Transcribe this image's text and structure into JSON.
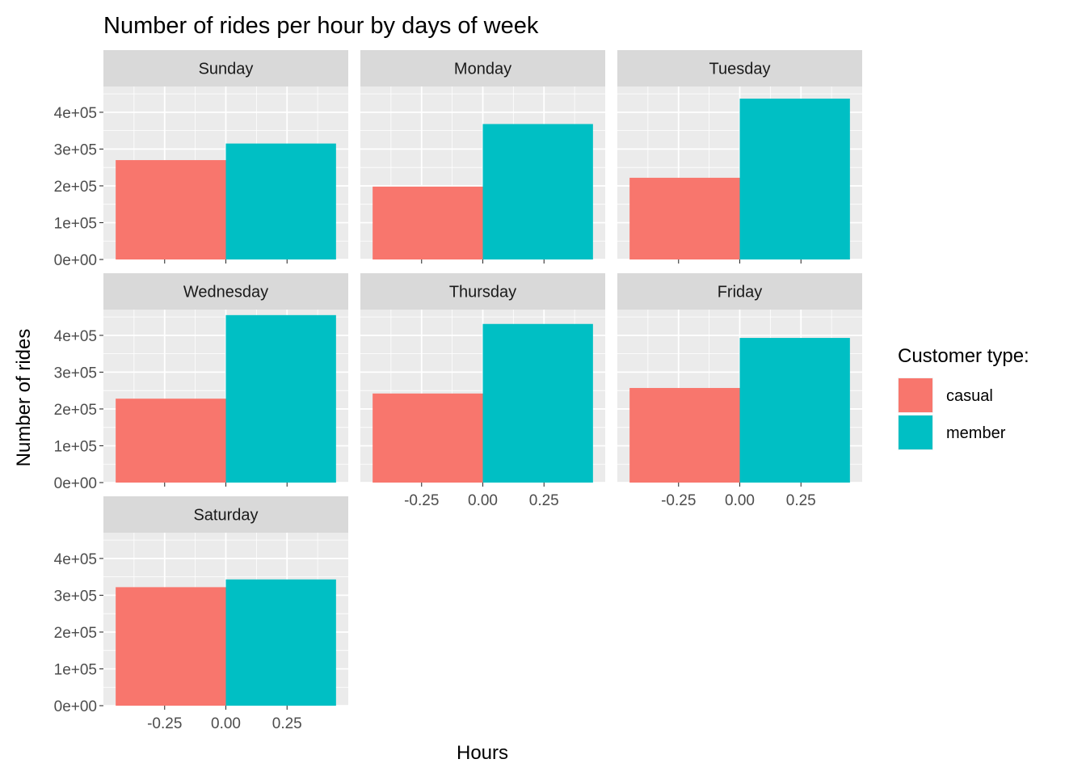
{
  "chart_data": {
    "type": "bar",
    "title": "Number of rides per hour by days of week",
    "xlabel": "Hours",
    "ylabel": "Number of rides",
    "facet_order": [
      "Sunday",
      "Monday",
      "Tuesday",
      "Wednesday",
      "Thursday",
      "Friday",
      "Saturday"
    ],
    "xlim": [
      -0.5,
      0.5
    ],
    "ylim": [
      0,
      470000
    ],
    "x_ticks": [
      -0.25,
      0.0,
      0.25
    ],
    "x_tick_labels": [
      "-0.25",
      "0.00",
      "0.25"
    ],
    "y_ticks": [
      0,
      100000,
      200000,
      300000,
      400000
    ],
    "y_tick_labels": [
      "0e+00",
      "1e+05",
      "2e+05",
      "3e+05",
      "4e+05"
    ],
    "bar_position": "dodge",
    "grid": true,
    "legend": {
      "title": "Customer type:",
      "position": "right"
    },
    "series": [
      {
        "name": "casual",
        "color": "#F8766D",
        "values": {
          "Sunday": 270000,
          "Monday": 198000,
          "Tuesday": 222000,
          "Wednesday": 228000,
          "Thursday": 242000,
          "Friday": 257000,
          "Saturday": 322000
        }
      },
      {
        "name": "member",
        "color": "#00BFC4",
        "values": {
          "Sunday": 315000,
          "Monday": 368000,
          "Tuesday": 437000,
          "Wednesday": 455000,
          "Thursday": 431000,
          "Friday": 393000,
          "Saturday": 343000
        }
      }
    ]
  }
}
